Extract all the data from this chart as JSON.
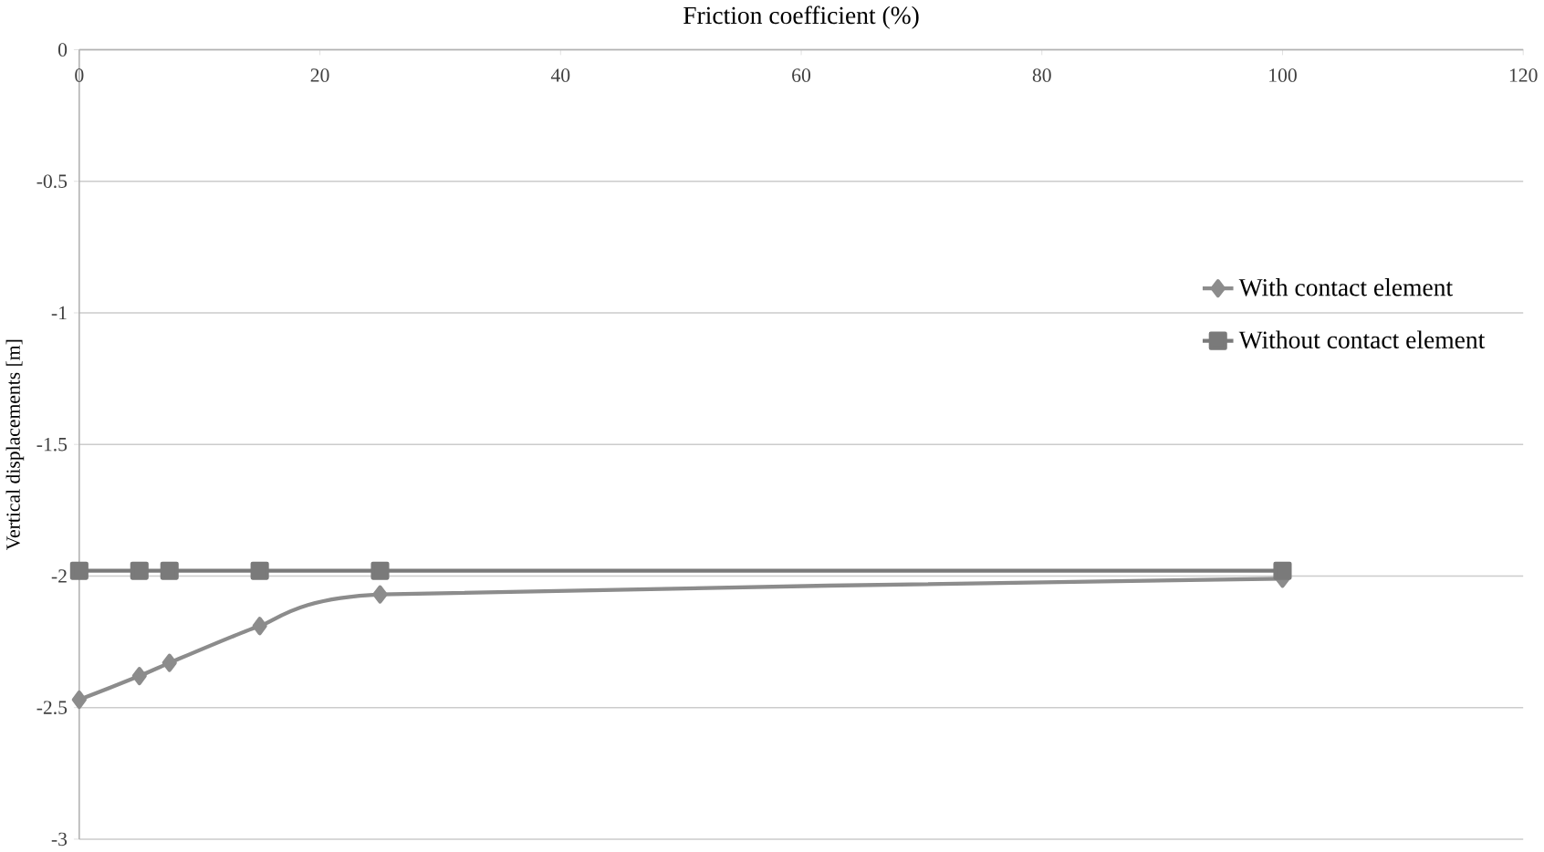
{
  "chart_data": {
    "type": "line",
    "xlabel": "Friction coefficient (%)",
    "ylabel": "Vertical displacements [m]",
    "xlim": [
      0,
      120
    ],
    "xticks": [
      0,
      20,
      40,
      60,
      80,
      100,
      120
    ],
    "ylim": [
      -3,
      0
    ],
    "yticks": [
      -3,
      -2.5,
      -2,
      -1.5,
      -1,
      -0.5,
      0
    ],
    "grid": "y",
    "legend": "right",
    "series": [
      {
        "name": "With contact element",
        "color": "#8c8c8c",
        "marker": "diamond",
        "x": [
          0,
          5,
          7.5,
          15,
          25,
          100
        ],
        "values": [
          -2.47,
          -2.38,
          -2.33,
          -2.19,
          -2.07,
          -2.01
        ]
      },
      {
        "name": "Without contact element",
        "color": "#7a7a7a",
        "marker": "square",
        "x": [
          0,
          5,
          7.5,
          15,
          25,
          100
        ],
        "values": [
          -1.98,
          -1.98,
          -1.98,
          -1.98,
          -1.98,
          -1.98
        ]
      }
    ]
  }
}
